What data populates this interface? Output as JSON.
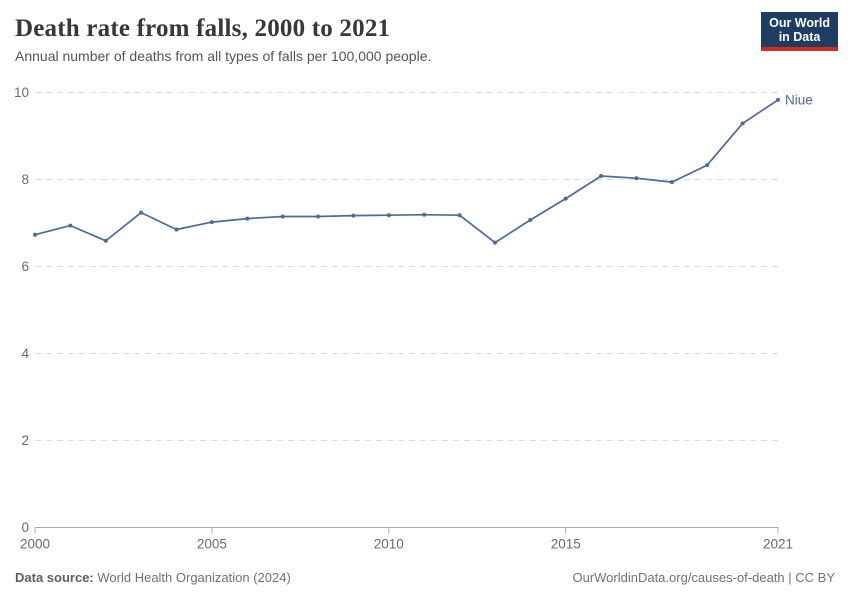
{
  "header": {
    "title": "Death rate from falls, 2000 to 2021",
    "subtitle": "Annual number of deaths from all types of falls per 100,000 people."
  },
  "logo": {
    "line1": "Our World",
    "line2": "in Data"
  },
  "chart_data": {
    "type": "line",
    "title": "Death rate from falls, 2000 to 2021",
    "xlabel": "",
    "ylabel": "",
    "x": [
      2000,
      2001,
      2002,
      2003,
      2004,
      2005,
      2006,
      2007,
      2008,
      2009,
      2010,
      2011,
      2012,
      2013,
      2014,
      2015,
      2016,
      2017,
      2018,
      2019,
      2020,
      2021
    ],
    "series": [
      {
        "name": "Niue",
        "color": "#4C6A9C",
        "values": [
          6.73,
          6.94,
          6.59,
          7.24,
          6.85,
          7.02,
          7.1,
          7.15,
          7.15,
          7.17,
          7.18,
          7.19,
          7.18,
          6.55,
          7.07,
          7.56,
          8.08,
          8.03,
          7.94,
          8.33,
          9.29,
          9.83
        ]
      }
    ],
    "ylim": [
      0,
      10
    ],
    "yticks": [
      0,
      2,
      4,
      6,
      8,
      10
    ],
    "xticks": [
      2000,
      2005,
      2010,
      2015,
      2021
    ],
    "grid": "horizontal-dashed",
    "legend_position": "end-of-line-label",
    "end_label": "Niue"
  },
  "footer": {
    "source_label": "Data source:",
    "source_value": "World Health Organization (2024)",
    "credit_link": "OurWorldinData.org/causes-of-death",
    "separator": " | ",
    "license": "CC BY"
  },
  "colors": {
    "line": "#4C6A9C",
    "grid": "#dcdcdc",
    "axis": "#a8a8a8",
    "tick_text": "#6b6b6b",
    "title": "#383838",
    "subtitle": "#555555",
    "logo_bg": "#1d3d63",
    "logo_bar": "#d42a20"
  }
}
